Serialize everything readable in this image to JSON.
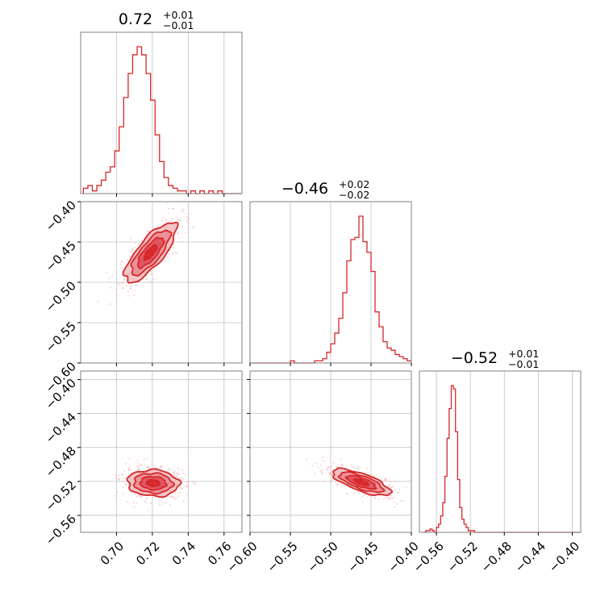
{
  "colors": {
    "accent": "#d62728",
    "fill_light": "#f2b3b5",
    "fill_mid": "#e8828a",
    "fill_dark": "#d94452",
    "scatter": "#f3a9ad",
    "grid": "#c0c0c0",
    "frame": "#808080"
  },
  "chart_data": {
    "type": "corner",
    "parameters": [
      {
        "title": {
          "value": "0.72",
          "upper": "+0.01",
          "lower": "−0.01"
        },
        "range": [
          0.68,
          0.77
        ],
        "ticks": [
          0.7,
          0.72,
          0.74,
          0.76
        ],
        "tick_labels": [
          "0.70",
          "0.72",
          "0.74",
          "0.76"
        ],
        "hist": {
          "start": 0.6815,
          "bin_width": 0.0025,
          "counts": [
            2,
            3,
            1,
            3,
            5,
            8,
            10,
            16,
            25,
            36,
            45,
            52,
            55,
            52,
            45,
            35,
            22,
            12,
            6,
            3,
            2,
            1,
            1,
            0,
            1,
            0,
            1,
            0,
            1,
            0,
            1,
            0,
            0,
            0,
            0,
            0
          ]
        }
      },
      {
        "title": {
          "value": "−0.46",
          "upper": "+0.02",
          "lower": "−0.02"
        },
        "range": [
          -0.6,
          -0.4
        ],
        "ticks": [
          -0.6,
          -0.55,
          -0.5,
          -0.45,
          -0.4
        ],
        "tick_labels": [
          "−0.60",
          "−0.55",
          "−0.50",
          "−0.45",
          "−0.40"
        ],
        "hist": {
          "start": -0.6,
          "bin_width": 0.005,
          "counts": [
            0,
            0,
            0,
            0,
            0,
            0,
            0,
            0,
            0,
            0,
            1,
            0,
            0,
            0,
            0,
            0,
            1,
            1,
            2,
            5,
            9,
            14,
            21,
            33,
            48,
            58,
            59,
            69,
            57,
            52,
            43,
            24,
            17,
            10,
            7,
            6,
            4,
            3,
            2,
            1
          ]
        }
      },
      {
        "title": {
          "value": "−0.52",
          "upper": "+0.01",
          "lower": "−0.01"
        },
        "range": [
          -0.58,
          -0.39
        ],
        "ticks": [
          -0.56,
          -0.52,
          -0.48,
          -0.44,
          -0.4
        ],
        "tick_labels": [
          "−0.56",
          "−0.52",
          "−0.48",
          "−0.44",
          "−0.40"
        ],
        "hist": {
          "start": -0.575,
          "bin_width": 0.0025,
          "counts": [
            0,
            1,
            1,
            2,
            1,
            0,
            3,
            5,
            10,
            18,
            34,
            57,
            75,
            89,
            87,
            61,
            32,
            15,
            8,
            5,
            3,
            1,
            1,
            1,
            0,
            0,
            0,
            0,
            0,
            0,
            0,
            0,
            0,
            0,
            0,
            0,
            0,
            0,
            0,
            0,
            0,
            0,
            0,
            0,
            0,
            0,
            0,
            0,
            0,
            0,
            0,
            0,
            0,
            0,
            0,
            0,
            0,
            0,
            0,
            0,
            0,
            0,
            0,
            0,
            0,
            0,
            0,
            0,
            0,
            0,
            0,
            0,
            0,
            0,
            0,
            0
          ]
        }
      }
    ],
    "pairs": [
      {
        "x_param": 0,
        "y_param": 1,
        "y_range": [
          -0.6,
          -0.4
        ],
        "y_ticks": [
          -0.6,
          -0.55,
          -0.5,
          -0.45,
          -0.4
        ],
        "y_tick_labels": [
          "−0.60",
          "−0.55",
          "−0.50",
          "−0.45",
          "−0.40"
        ],
        "center": [
          0.719,
          -0.463
        ],
        "sd": [
          0.0072,
          0.0185
        ],
        "corr": 0.78,
        "contour_levels_sigma": [
          0.5,
          1.0,
          1.5,
          2.0
        ]
      },
      {
        "x_param": 0,
        "y_param": 2,
        "y_range": [
          -0.58,
          -0.39
        ],
        "y_ticks": [
          -0.56,
          -0.52,
          -0.48,
          -0.44,
          -0.4
        ],
        "y_tick_labels": [
          "−0.56",
          "−0.52",
          "−0.48",
          "−0.44",
          "−0.40"
        ],
        "center": [
          0.7205,
          -0.522
        ],
        "sd": [
          0.0072,
          0.0078
        ],
        "corr": -0.08,
        "contour_levels_sigma": [
          0.5,
          1.0,
          1.5,
          2.0
        ]
      },
      {
        "x_param": 1,
        "y_param": 2,
        "y_range": [
          -0.58,
          -0.39
        ],
        "y_ticks": [
          -0.56,
          -0.52,
          -0.48,
          -0.44,
          -0.4
        ],
        "y_tick_labels": [
          "−0.56",
          "−0.52",
          "−0.48",
          "−0.44",
          "−0.40"
        ],
        "center": [
          -0.462,
          -0.521
        ],
        "sd": [
          0.018,
          0.0078
        ],
        "corr": -0.72,
        "contour_levels_sigma": [
          0.5,
          1.0,
          1.5,
          2.0
        ]
      }
    ],
    "grid": true
  }
}
